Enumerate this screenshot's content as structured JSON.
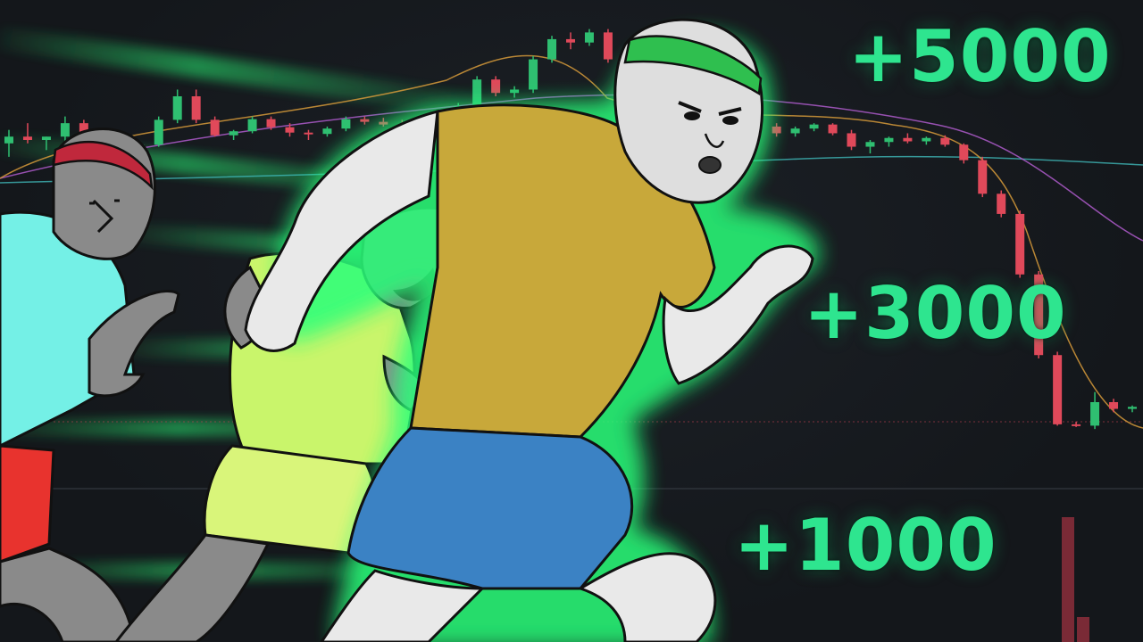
{
  "labels": {
    "gain_top": "+5000",
    "gain_middle": "+3000",
    "gain_bottom": "+1000"
  },
  "colors": {
    "background": "#15181d",
    "gain_text": "#2ee58f",
    "glow": "#2bff7a",
    "candle_up": "#2fbf71",
    "candle_down": "#e0495a"
  },
  "characters": [
    {
      "name": "front-runner",
      "shirt_color": "#c8a83a",
      "shorts_color": "#3b82c4",
      "headband_color": "#2fbf4f"
    },
    {
      "name": "middle-runner",
      "shirt_color": "#c9f56b",
      "shorts_color": "#d9f57a"
    },
    {
      "name": "back-runner",
      "shirt_color": "#74f0e6",
      "shorts_color": "#e8332e",
      "headband_color": "#c0283c"
    }
  ],
  "chart_data": {
    "type": "candlestick",
    "trend": "rise-then-crash",
    "candles": [
      [
        100,
        102,
        98,
        101
      ],
      [
        101,
        103,
        100,
        100.5
      ],
      [
        100.5,
        101,
        99,
        101
      ],
      [
        101,
        104,
        100,
        103
      ],
      [
        103,
        103.5,
        101,
        101.5
      ],
      [
        101.5,
        102,
        100,
        100.2
      ],
      [
        100.2,
        101,
        99,
        99.5
      ],
      [
        99.5,
        100,
        98,
        99.8
      ],
      [
        99.8,
        104,
        99.5,
        103.5
      ],
      [
        103.5,
        108,
        103,
        107
      ],
      [
        107,
        108,
        103,
        103.5
      ],
      [
        103.5,
        104,
        101,
        101.2
      ],
      [
        101.2,
        102,
        100.5,
        101.8
      ],
      [
        101.8,
        104,
        101.5,
        103.6
      ],
      [
        103.6,
        104,
        102,
        102.4
      ],
      [
        102.4,
        103,
        101,
        101.6
      ],
      [
        101.6,
        102,
        100.5,
        101.4
      ],
      [
        101.4,
        102.5,
        101,
        102.2
      ],
      [
        102.2,
        104,
        101.8,
        103.6
      ],
      [
        103.6,
        104,
        102.8,
        103.2
      ],
      [
        103.2,
        103.8,
        102.5,
        102.8
      ],
      [
        102.8,
        103.5,
        102,
        102.4
      ],
      [
        102.4,
        103,
        101.8,
        102.6
      ],
      [
        102.6,
        104,
        102.4,
        103.8
      ],
      [
        103.8,
        106,
        103.5,
        105.5
      ],
      [
        105.5,
        110,
        105,
        109.5
      ],
      [
        109.5,
        110,
        107,
        107.5
      ],
      [
        107.5,
        108.5,
        106.8,
        108
      ],
      [
        108,
        113,
        107.5,
        112.5
      ],
      [
        112.5,
        116,
        112,
        115.5
      ],
      [
        115.5,
        116.5,
        114,
        115
      ],
      [
        115,
        117,
        114.5,
        116.5
      ],
      [
        116.5,
        117,
        112,
        112.5
      ],
      [
        112.5,
        113,
        109,
        109.5
      ],
      [
        109.5,
        110,
        104,
        104.5
      ],
      [
        104.5,
        105,
        102.5,
        103
      ],
      [
        103,
        104,
        102,
        103.5
      ],
      [
        103.5,
        104.5,
        102.5,
        103
      ],
      [
        103,
        103.5,
        101.5,
        102
      ],
      [
        102,
        103,
        101.5,
        102.8
      ],
      [
        102.8,
        103.5,
        102,
        102.5
      ],
      [
        102.5,
        103,
        101,
        101.5
      ],
      [
        101.5,
        102.5,
        101,
        102.2
      ],
      [
        102.2,
        103,
        101.8,
        102.8
      ],
      [
        102.8,
        103,
        101.2,
        101.5
      ],
      [
        101.5,
        102,
        99,
        99.5
      ],
      [
        99.5,
        100.5,
        98.5,
        100.2
      ],
      [
        100.2,
        101,
        99.5,
        100.8
      ],
      [
        100.8,
        101.5,
        100,
        100.3
      ],
      [
        100.3,
        101,
        99.8,
        100.8
      ],
      [
        100.8,
        101.2,
        99.5,
        99.8
      ],
      [
        99.8,
        100,
        97,
        97.5
      ],
      [
        97.5,
        98,
        92,
        92.5
      ],
      [
        92.5,
        93,
        89,
        89.5
      ],
      [
        89.5,
        90,
        80,
        80.5
      ],
      [
        80.5,
        81,
        68,
        68.5
      ],
      [
        68.5,
        69,
        58,
        58.2
      ],
      [
        58.2,
        58.6,
        57.8,
        58
      ],
      [
        58,
        63,
        57.5,
        61.5
      ],
      [
        61.5,
        62,
        60,
        60.5
      ],
      [
        60.5,
        61,
        60,
        60.8
      ]
    ],
    "volume_bars": [
      40,
      8
    ]
  }
}
